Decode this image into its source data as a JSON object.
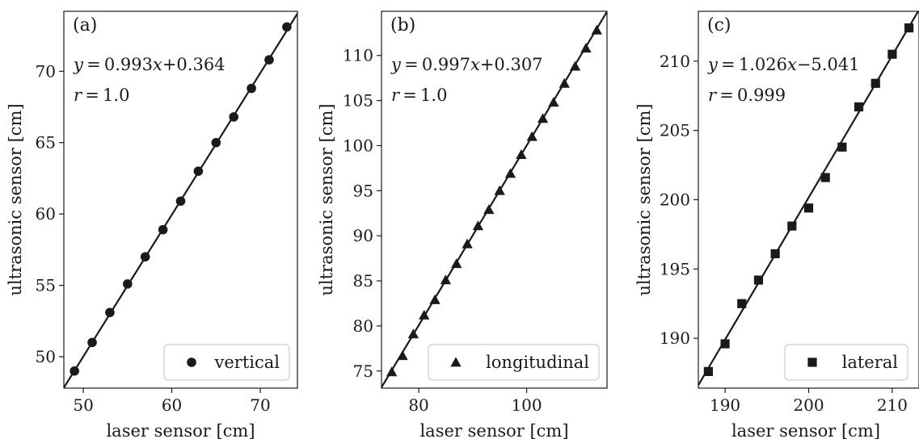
{
  "chart_data": [
    {
      "type": "scatter",
      "panel_label": "(a)",
      "marker": "circle",
      "fit_equation": {
        "slope": "0.993",
        "sign": "+",
        "intercept": "0.364"
      },
      "r_value": "1.0",
      "xlabel": "laser sensor [cm]",
      "ylabel": "ultrasonic sensor [cm]",
      "xlim": [
        47.8,
        74.2
      ],
      "ylim": [
        47.8,
        74.2
      ],
      "xticks": [
        50,
        60,
        70
      ],
      "yticks": [
        50,
        55,
        60,
        65,
        70
      ],
      "legend": {
        "label": "vertical",
        "placement": "lower right"
      },
      "fit": {
        "slope": 0.993,
        "intercept": 0.364
      },
      "series": [
        {
          "name": "vertical",
          "x": [
            49,
            51,
            53,
            55,
            57,
            59,
            61,
            63,
            65,
            67,
            69,
            71,
            73
          ],
          "y": [
            49.0,
            51.0,
            53.1,
            55.1,
            57.0,
            58.9,
            60.9,
            63.0,
            65.0,
            66.8,
            68.8,
            70.8,
            73.1
          ]
        }
      ]
    },
    {
      "type": "scatter",
      "panel_label": "(b)",
      "marker": "triangle",
      "fit_equation": {
        "slope": "0.997",
        "sign": "+",
        "intercept": "0.307"
      },
      "r_value": "1.0",
      "xlabel": "laser sensor [cm]",
      "ylabel": "ultrasonic sensor [cm]",
      "xlim": [
        73.1,
        114.9
      ],
      "ylim": [
        73.1,
        114.9
      ],
      "xticks": [
        80,
        100
      ],
      "yticks": [
        75,
        80,
        85,
        90,
        95,
        100,
        105,
        110
      ],
      "legend": {
        "label": "longitudinal",
        "placement": "lower right"
      },
      "fit": {
        "slope": 0.997,
        "intercept": 0.307
      },
      "series": [
        {
          "name": "longitudinal",
          "x": [
            75,
            77,
            79,
            81,
            83,
            85,
            87,
            89,
            91,
            93,
            95,
            97,
            99,
            101,
            103,
            105,
            107,
            109,
            111,
            113
          ],
          "y": [
            74.9,
            76.7,
            79.1,
            81.2,
            82.9,
            85.1,
            86.9,
            89.1,
            91.1,
            92.9,
            95.0,
            96.9,
            99.0,
            101.0,
            103.0,
            104.8,
            106.9,
            108.8,
            110.8,
            112.8
          ]
        }
      ]
    },
    {
      "type": "scatter",
      "panel_label": "(c)",
      "marker": "square",
      "fit_equation": {
        "slope": "1.026",
        "sign": "−",
        "intercept": "5.041"
      },
      "r_value": "0.999",
      "xlabel": "laser sensor [cm]",
      "ylabel": "ultrasonic sensor [cm]",
      "xlim": [
        186.8,
        213.2
      ],
      "ylim": [
        186.4,
        213.6
      ],
      "xticks": [
        190,
        200,
        210
      ],
      "yticks": [
        190,
        195,
        200,
        205,
        210
      ],
      "legend": {
        "label": "lateral",
        "placement": "lower right"
      },
      "fit": {
        "slope": 1.026,
        "intercept": -5.041
      },
      "series": [
        {
          "name": "lateral",
          "x": [
            188,
            190,
            192,
            194,
            196,
            198,
            200,
            202,
            204,
            206,
            208,
            210,
            212
          ],
          "y": [
            187.6,
            189.6,
            192.5,
            194.2,
            196.1,
            198.1,
            199.4,
            201.6,
            203.8,
            206.7,
            208.4,
            210.5,
            212.4
          ]
        }
      ]
    }
  ]
}
